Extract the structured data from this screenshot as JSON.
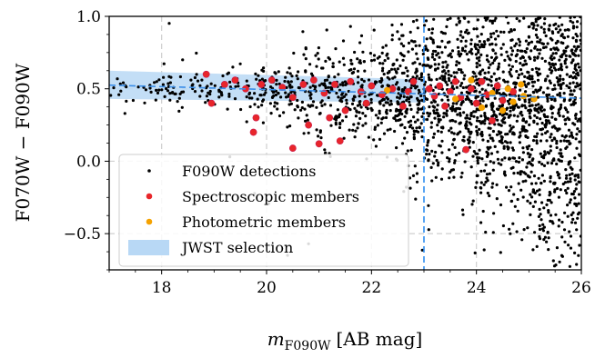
{
  "chart_data": {
    "type": "scatter",
    "title": "",
    "xlabel_main": "m",
    "xlabel_sub": "F090W",
    "xlabel_unit": "[AB mag]",
    "ylabel": "F070W − F090W",
    "xlim": [
      17,
      26
    ],
    "ylim": [
      -0.75,
      1.0
    ],
    "x_ticks": [
      18,
      20,
      22,
      24,
      26
    ],
    "x_tick_labels": [
      "18",
      "20",
      "22",
      "24",
      "26"
    ],
    "y_ticks": [
      -0.5,
      0.0,
      0.5,
      1.0
    ],
    "y_tick_labels": [
      "−0.5",
      "0.0",
      "0.5",
      "1.0"
    ],
    "grid": true,
    "legend_position": "lower-left",
    "colors": {
      "detections": "#000000",
      "spectroscopic": "#e8262a",
      "spectroscopic_edge": "#c8184f",
      "photometric": "#f5a200",
      "selection_band": "#b8d8f5",
      "fit_line": "#3b8ee8",
      "cut_line": "#2f8ef0",
      "grid": "#cfcfcf"
    },
    "reference_lines": {
      "magnitude_cut_x": 23.0,
      "fit_line": {
        "x": [
          17,
          26
        ],
        "y": [
          0.525,
          0.435
        ]
      }
    },
    "selection_band": {
      "x": [
        17,
        23
      ],
      "y_lower": [
        0.43,
        0.405
      ],
      "y_upper": [
        0.625,
        0.565
      ]
    },
    "series": [
      {
        "name": "F090W detections",
        "marker": "dot",
        "approx_count": 2400,
        "description_points": [
          {
            "x": 17.3,
            "y": 0.33
          },
          {
            "x": 18.4,
            "y": 0.7
          },
          {
            "x": 19.3,
            "y": 0.03
          },
          {
            "x": 20.4,
            "y": -0.65
          },
          {
            "x": 20.8,
            "y": -0.57
          },
          {
            "x": 21.6,
            "y": 0.93
          },
          {
            "x": 22.4,
            "y": 0.87
          },
          {
            "x": 22.8,
            "y": -0.1
          },
          {
            "x": 24.3,
            "y": -0.18
          },
          {
            "x": 25.2,
            "y": -0.52
          },
          {
            "x": 25.8,
            "y": -0.6
          },
          {
            "x": 26.0,
            "y": 0.95
          }
        ]
      },
      {
        "name": "Spectroscopic members",
        "marker": "circle",
        "points": [
          {
            "x": 18.85,
            "y": 0.6
          },
          {
            "x": 18.95,
            "y": 0.4
          },
          {
            "x": 19.2,
            "y": 0.53
          },
          {
            "x": 19.4,
            "y": 0.56
          },
          {
            "x": 19.6,
            "y": 0.5
          },
          {
            "x": 19.75,
            "y": 0.2
          },
          {
            "x": 19.8,
            "y": 0.3
          },
          {
            "x": 19.9,
            "y": 0.53
          },
          {
            "x": 20.1,
            "y": 0.56
          },
          {
            "x": 20.3,
            "y": 0.51
          },
          {
            "x": 20.5,
            "y": 0.44
          },
          {
            "x": 20.5,
            "y": 0.09
          },
          {
            "x": 20.7,
            "y": 0.53
          },
          {
            "x": 20.8,
            "y": 0.25
          },
          {
            "x": 20.9,
            "y": 0.56
          },
          {
            "x": 21.0,
            "y": 0.12
          },
          {
            "x": 21.1,
            "y": 0.47
          },
          {
            "x": 21.2,
            "y": 0.3
          },
          {
            "x": 21.3,
            "y": 0.53
          },
          {
            "x": 21.4,
            "y": 0.14
          },
          {
            "x": 21.5,
            "y": 0.35
          },
          {
            "x": 21.6,
            "y": 0.55
          },
          {
            "x": 21.8,
            "y": 0.48
          },
          {
            "x": 21.9,
            "y": 0.4
          },
          {
            "x": 22.0,
            "y": 0.52
          },
          {
            "x": 22.2,
            "y": 0.46
          },
          {
            "x": 22.4,
            "y": 0.5
          },
          {
            "x": 22.6,
            "y": 0.38
          },
          {
            "x": 22.7,
            "y": 0.48
          },
          {
            "x": 22.8,
            "y": 0.55
          },
          {
            "x": 23.1,
            "y": 0.5
          },
          {
            "x": 23.2,
            "y": 0.45
          },
          {
            "x": 23.3,
            "y": 0.52
          },
          {
            "x": 23.4,
            "y": 0.38
          },
          {
            "x": 23.5,
            "y": 0.48
          },
          {
            "x": 23.6,
            "y": 0.55
          },
          {
            "x": 23.7,
            "y": 0.44
          },
          {
            "x": 23.8,
            "y": 0.08
          },
          {
            "x": 23.9,
            "y": 0.5
          },
          {
            "x": 24.0,
            "y": 0.4
          },
          {
            "x": 24.1,
            "y": 0.55
          },
          {
            "x": 24.2,
            "y": 0.46
          },
          {
            "x": 24.3,
            "y": 0.28
          },
          {
            "x": 24.4,
            "y": 0.52
          },
          {
            "x": 24.5,
            "y": 0.42
          },
          {
            "x": 24.7,
            "y": 0.48
          }
        ]
      },
      {
        "name": "Photometric members",
        "marker": "circle",
        "points": [
          {
            "x": 22.3,
            "y": 0.49
          },
          {
            "x": 23.6,
            "y": 0.43
          },
          {
            "x": 23.9,
            "y": 0.56
          },
          {
            "x": 24.1,
            "y": 0.37
          },
          {
            "x": 24.3,
            "y": 0.47
          },
          {
            "x": 24.5,
            "y": 0.35
          },
          {
            "x": 24.6,
            "y": 0.5
          },
          {
            "x": 24.7,
            "y": 0.41
          },
          {
            "x": 24.85,
            "y": 0.53
          },
          {
            "x": 24.9,
            "y": 0.45
          },
          {
            "x": 25.1,
            "y": 0.43
          }
        ]
      },
      {
        "name": "JWST selection",
        "marker": "band"
      }
    ],
    "legend": [
      {
        "key": "detections",
        "label": "F090W detections"
      },
      {
        "key": "spectroscopic",
        "label": "Spectroscopic members"
      },
      {
        "key": "photometric",
        "label": "Photometric members"
      },
      {
        "key": "selection",
        "label": "JWST selection"
      }
    ]
  }
}
